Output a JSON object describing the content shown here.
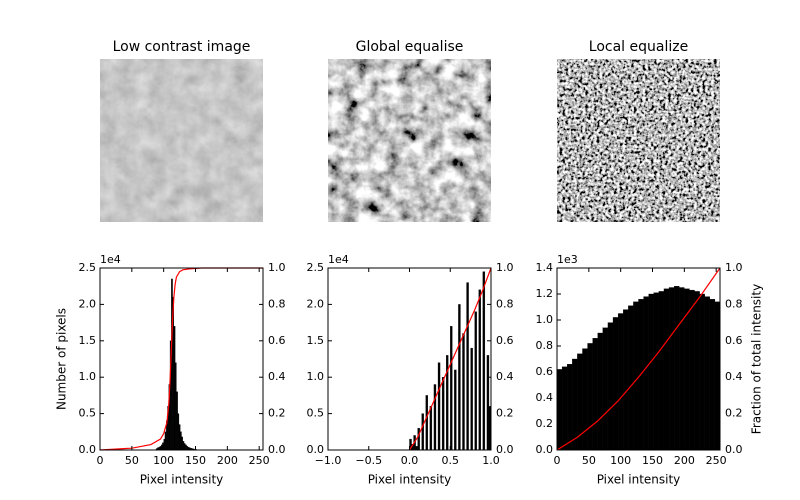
{
  "chart_data": [
    {
      "type": "image",
      "title": "Low contrast image"
    },
    {
      "type": "image",
      "title": "Global equalise"
    },
    {
      "type": "image",
      "title": "Local equalize"
    },
    {
      "type": "histogram",
      "color": "#000000",
      "xlabel": "Pixel intensity",
      "ylabel": "Number of pixels",
      "y_offset": "1e4",
      "xlim": [
        0,
        256
      ],
      "xticks": [
        0,
        50,
        100,
        150,
        200,
        250
      ],
      "ylim": [
        0,
        25000
      ],
      "yticks": [
        {
          "value": 0,
          "label": "0.0"
        },
        {
          "value": 5000,
          "label": "0.5"
        },
        {
          "value": 10000,
          "label": "1.0"
        },
        {
          "value": 15000,
          "label": "1.5"
        },
        {
          "value": 20000,
          "label": "2.0"
        },
        {
          "value": 25000,
          "label": "2.5"
        }
      ],
      "y2lim": [
        0,
        1
      ],
      "y2ticks": [
        {
          "value": 0,
          "label": "0.0"
        },
        {
          "value": 0.2,
          "label": "0.2"
        },
        {
          "value": 0.4,
          "label": "0.4"
        },
        {
          "value": 0.6,
          "label": "0.6"
        },
        {
          "value": 0.8,
          "label": "0.8"
        },
        {
          "value": 1,
          "label": "1.0"
        }
      ],
      "bins": [
        88,
        90,
        92,
        94,
        96,
        98,
        100,
        102,
        104,
        106,
        108,
        110,
        112,
        114,
        116,
        118,
        120,
        122,
        124,
        126,
        128,
        130,
        132,
        134,
        136,
        138,
        140,
        142,
        144,
        146,
        148,
        150,
        152
      ],
      "values": [
        200,
        300,
        400,
        500,
        700,
        1000,
        1500,
        2500,
        4000,
        6000,
        9000,
        15000,
        23500,
        21000,
        17000,
        12000,
        8000,
        5000,
        3500,
        2500,
        1800,
        1200,
        900,
        700,
        500,
        400,
        300,
        250,
        200,
        150,
        100,
        80
      ],
      "series": [
        {
          "color": "#ff0000",
          "axis": "y2",
          "x": [
            0,
            50,
            80,
            95,
            100,
            105,
            108,
            110,
            112,
            114,
            116,
            118,
            120,
            125,
            130,
            140,
            160,
            256
          ],
          "values": [
            0,
            0.01,
            0.03,
            0.06,
            0.09,
            0.15,
            0.25,
            0.38,
            0.55,
            0.72,
            0.84,
            0.91,
            0.95,
            0.98,
            0.99,
            0.995,
            1,
            1
          ]
        }
      ]
    },
    {
      "type": "histogram",
      "color": "#000000",
      "xlabel": "Pixel intensity",
      "y_offset": "1e4",
      "xlim": [
        -1,
        1
      ],
      "xticks": [
        {
          "value": -1,
          "label": "−1.0"
        },
        {
          "value": -0.5,
          "label": "−0.5"
        },
        {
          "value": 0,
          "label": "0.0"
        },
        {
          "value": 0.5,
          "label": "0.5"
        },
        {
          "value": 1,
          "label": "1.0"
        }
      ],
      "ylim": [
        0,
        25000
      ],
      "yticks": [
        {
          "value": 0,
          "label": "0.0"
        },
        {
          "value": 5000,
          "label": "0.5"
        },
        {
          "value": 10000,
          "label": "1.0"
        },
        {
          "value": 15000,
          "label": "1.5"
        },
        {
          "value": 20000,
          "label": "2.0"
        },
        {
          "value": 25000,
          "label": "2.5"
        }
      ],
      "y2lim": [
        0,
        1
      ],
      "y2ticks": [
        {
          "value": 0,
          "label": "0.0"
        },
        {
          "value": 0.2,
          "label": "0.2"
        },
        {
          "value": 0.4,
          "label": "0.4"
        },
        {
          "value": 0.6,
          "label": "0.6"
        },
        {
          "value": 0.8,
          "label": "0.8"
        },
        {
          "value": 1,
          "label": "1.0"
        }
      ],
      "bins": [
        0,
        0.025,
        0.05,
        0.075,
        0.1,
        0.125,
        0.15,
        0.175,
        0.2,
        0.225,
        0.25,
        0.275,
        0.3,
        0.325,
        0.35,
        0.375,
        0.4,
        0.425,
        0.45,
        0.475,
        0.5,
        0.525,
        0.55,
        0.575,
        0.6,
        0.625,
        0.65,
        0.675,
        0.7,
        0.725,
        0.75,
        0.775,
        0.8,
        0.825,
        0.85,
        0.875,
        0.9,
        0.925,
        0.95,
        0.975,
        1
      ],
      "values": [
        1500,
        800,
        2000,
        500,
        3000,
        0,
        5000,
        0,
        7500,
        0,
        6000,
        0,
        9000,
        0,
        12000,
        0,
        10000,
        0,
        13000,
        0,
        17000,
        0,
        11000,
        0,
        20000,
        0,
        16000,
        0,
        23000,
        0,
        14000,
        0,
        19000,
        0,
        22000,
        0,
        24500,
        0,
        13000,
        6000
      ],
      "series": [
        {
          "color": "#ff0000",
          "axis": "y2",
          "x": [
            0,
            0.1,
            0.2,
            0.3,
            0.4,
            0.5,
            0.6,
            0.7,
            0.8,
            0.9,
            1
          ],
          "values": [
            0,
            0.07,
            0.17,
            0.27,
            0.37,
            0.47,
            0.57,
            0.67,
            0.77,
            0.88,
            1
          ]
        }
      ]
    },
    {
      "type": "histogram",
      "color": "#000000",
      "xlabel": "Pixel intensity",
      "y2label": "Fraction of total intensity",
      "y_offset": "1e3",
      "xlim": [
        0,
        256
      ],
      "xticks": [
        0,
        50,
        100,
        150,
        200,
        250
      ],
      "ylim": [
        0,
        1400
      ],
      "yticks": [
        {
          "value": 0,
          "label": "0.0"
        },
        {
          "value": 200,
          "label": "0.2"
        },
        {
          "value": 400,
          "label": "0.4"
        },
        {
          "value": 600,
          "label": "0.6"
        },
        {
          "value": 800,
          "label": "0.8"
        },
        {
          "value": 1000,
          "label": "1.0"
        },
        {
          "value": 1200,
          "label": "1.2"
        },
        {
          "value": 1400,
          "label": "1.4"
        }
      ],
      "y2lim": [
        0,
        1
      ],
      "y2ticks": [
        {
          "value": 0,
          "label": "0.0"
        },
        {
          "value": 0.2,
          "label": "0.2"
        },
        {
          "value": 0.4,
          "label": "0.4"
        },
        {
          "value": 0.6,
          "label": "0.6"
        },
        {
          "value": 0.8,
          "label": "0.8"
        },
        {
          "value": 1,
          "label": "1.0"
        }
      ],
      "bins": [
        0,
        8,
        16,
        24,
        32,
        40,
        48,
        56,
        64,
        72,
        80,
        88,
        96,
        104,
        112,
        120,
        128,
        136,
        144,
        152,
        160,
        168,
        176,
        184,
        192,
        200,
        208,
        216,
        224,
        232,
        240,
        248,
        256
      ],
      "values": [
        620,
        640,
        660,
        700,
        740,
        780,
        820,
        860,
        900,
        940,
        980,
        1020,
        1050,
        1080,
        1110,
        1140,
        1160,
        1180,
        1200,
        1210,
        1220,
        1240,
        1250,
        1260,
        1250,
        1240,
        1230,
        1220,
        1200,
        1180,
        1160,
        1140
      ],
      "series": [
        {
          "color": "#ff0000",
          "axis": "y2",
          "x": [
            0,
            32,
            64,
            96,
            128,
            160,
            192,
            224,
            256
          ],
          "values": [
            0,
            0.07,
            0.16,
            0.27,
            0.4,
            0.54,
            0.69,
            0.84,
            1
          ]
        }
      ]
    }
  ]
}
